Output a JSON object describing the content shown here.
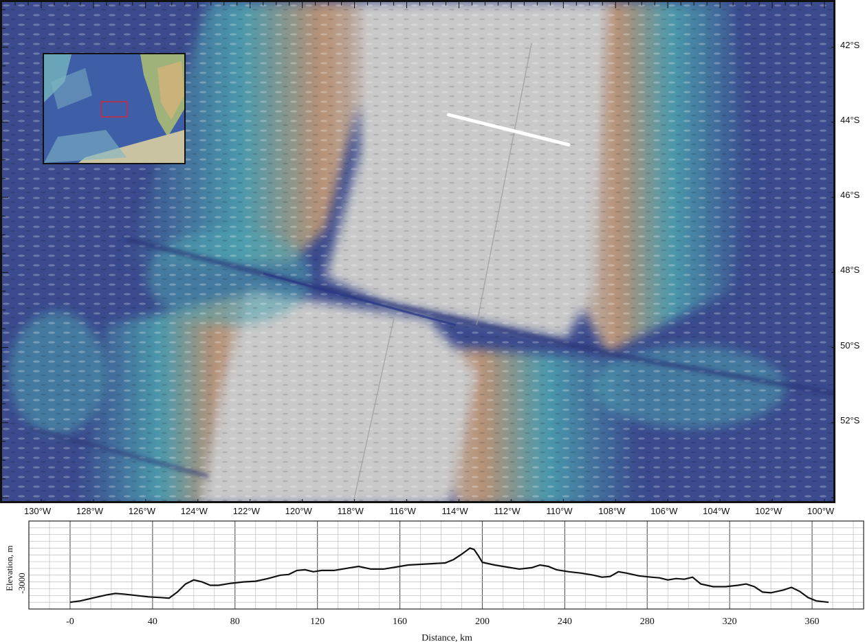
{
  "map": {
    "lon_labels": [
      "130°W",
      "128°W",
      "126°W",
      "124°W",
      "122°W",
      "120°W",
      "118°W",
      "116°W",
      "114°W",
      "112°W",
      "110°W",
      "108°W",
      "106°W",
      "104°W",
      "102°W",
      "100°W"
    ],
    "lat_labels": [
      "42°S",
      "44°S",
      "46°S",
      "48°S",
      "50°S",
      "52°S"
    ],
    "lon_range": [
      -131.5,
      -99.5
    ],
    "lat_range": [
      -54.2,
      -40.8
    ],
    "profile_track": {
      "start": [
        -114.4,
        -43.8
      ],
      "end": [
        -109.8,
        -44.6
      ],
      "color": "#ffffff"
    },
    "colors": {
      "abyssal": "#3b4b8e",
      "mid": "#4fa3b0",
      "ridge_flank": "#c79a72",
      "crest": "#c9c9c9"
    },
    "inset": {
      "highlight_color": "#e0202a",
      "box_lon": [
        -131.5,
        -99.5
      ],
      "box_lat": [
        -54.2,
        -40.8
      ]
    }
  },
  "chart_data": {
    "type": "line",
    "xlabel": "Distance, km",
    "ylabel": "Elevation, m",
    "ytick_label": "-3000",
    "xlim": [
      -20,
      385
    ],
    "xticks": [
      "-0",
      "40",
      "80",
      "120",
      "160",
      "200",
      "240",
      "280",
      "320",
      "360"
    ],
    "xtick_values": [
      0,
      40,
      80,
      120,
      160,
      200,
      240,
      280,
      320,
      360
    ],
    "ylim": [
      -3450,
      -2150
    ],
    "ytick_value": -3000,
    "grid": true,
    "x": [
      0,
      5,
      12,
      18,
      22,
      26,
      32,
      38,
      44,
      48,
      52,
      56,
      60,
      64,
      68,
      72,
      78,
      84,
      90,
      96,
      102,
      106,
      110,
      114,
      118,
      122,
      128,
      134,
      140,
      146,
      152,
      158,
      164,
      170,
      176,
      182,
      186,
      190,
      194,
      196,
      198,
      200,
      206,
      212,
      218,
      224,
      228,
      232,
      236,
      242,
      248,
      254,
      258,
      262,
      266,
      270,
      276,
      282,
      286,
      290,
      294,
      298,
      302,
      306,
      312,
      318,
      324,
      328,
      332,
      336,
      340,
      346,
      350,
      354,
      358,
      362,
      368
    ],
    "y": [
      -3350,
      -3330,
      -3280,
      -3240,
      -3220,
      -3230,
      -3250,
      -3270,
      -3280,
      -3290,
      -3200,
      -3080,
      -3020,
      -3050,
      -3100,
      -3100,
      -3070,
      -3050,
      -3040,
      -3000,
      -2950,
      -2940,
      -2880,
      -2870,
      -2900,
      -2880,
      -2880,
      -2850,
      -2820,
      -2860,
      -2860,
      -2830,
      -2800,
      -2790,
      -2780,
      -2770,
      -2720,
      -2640,
      -2550,
      -2570,
      -2660,
      -2760,
      -2800,
      -2830,
      -2860,
      -2840,
      -2800,
      -2820,
      -2870,
      -2900,
      -2920,
      -2950,
      -2980,
      -2970,
      -2900,
      -2920,
      -2960,
      -2980,
      -2990,
      -3020,
      -3000,
      -3010,
      -2980,
      -3080,
      -3120,
      -3120,
      -3100,
      -3080,
      -3120,
      -3200,
      -3210,
      -3170,
      -3130,
      -3190,
      -3280,
      -3330,
      -3350
    ]
  }
}
